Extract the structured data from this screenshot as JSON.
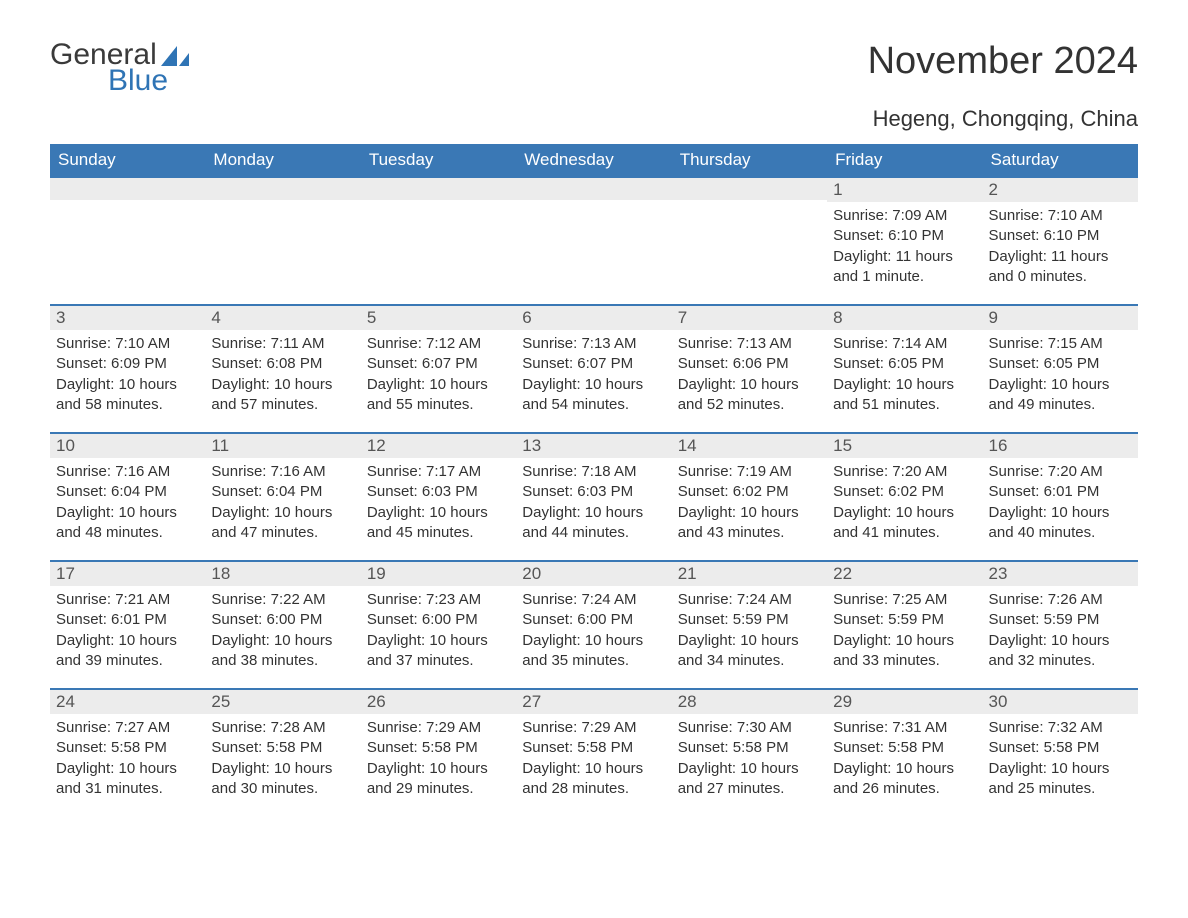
{
  "brand": {
    "part1": "General",
    "part2": "Blue",
    "color_text": "#3a3a3a",
    "color_accent": "#2f74b5"
  },
  "title": "November 2024",
  "location": "Hegeng, Chongqing, China",
  "colors": {
    "header_bg": "#3a78b5",
    "header_text": "#ffffff",
    "row_stripe": "#ececec",
    "row_border": "#3a78b5",
    "body_text": "#333333",
    "page_bg": "#ffffff"
  },
  "typography": {
    "title_fontsize": 38,
    "location_fontsize": 22,
    "header_fontsize": 17,
    "body_fontsize": 15
  },
  "weekdays": [
    "Sunday",
    "Monday",
    "Tuesday",
    "Wednesday",
    "Thursday",
    "Friday",
    "Saturday"
  ],
  "layout": {
    "columns": 7,
    "rows": 5,
    "first_day_column_index": 5
  },
  "days": [
    {
      "n": 1,
      "sunrise": "7:09 AM",
      "sunset": "6:10 PM",
      "daylight": "11 hours and 1 minute."
    },
    {
      "n": 2,
      "sunrise": "7:10 AM",
      "sunset": "6:10 PM",
      "daylight": "11 hours and 0 minutes."
    },
    {
      "n": 3,
      "sunrise": "7:10 AM",
      "sunset": "6:09 PM",
      "daylight": "10 hours and 58 minutes."
    },
    {
      "n": 4,
      "sunrise": "7:11 AM",
      "sunset": "6:08 PM",
      "daylight": "10 hours and 57 minutes."
    },
    {
      "n": 5,
      "sunrise": "7:12 AM",
      "sunset": "6:07 PM",
      "daylight": "10 hours and 55 minutes."
    },
    {
      "n": 6,
      "sunrise": "7:13 AM",
      "sunset": "6:07 PM",
      "daylight": "10 hours and 54 minutes."
    },
    {
      "n": 7,
      "sunrise": "7:13 AM",
      "sunset": "6:06 PM",
      "daylight": "10 hours and 52 minutes."
    },
    {
      "n": 8,
      "sunrise": "7:14 AM",
      "sunset": "6:05 PM",
      "daylight": "10 hours and 51 minutes."
    },
    {
      "n": 9,
      "sunrise": "7:15 AM",
      "sunset": "6:05 PM",
      "daylight": "10 hours and 49 minutes."
    },
    {
      "n": 10,
      "sunrise": "7:16 AM",
      "sunset": "6:04 PM",
      "daylight": "10 hours and 48 minutes."
    },
    {
      "n": 11,
      "sunrise": "7:16 AM",
      "sunset": "6:04 PM",
      "daylight": "10 hours and 47 minutes."
    },
    {
      "n": 12,
      "sunrise": "7:17 AM",
      "sunset": "6:03 PM",
      "daylight": "10 hours and 45 minutes."
    },
    {
      "n": 13,
      "sunrise": "7:18 AM",
      "sunset": "6:03 PM",
      "daylight": "10 hours and 44 minutes."
    },
    {
      "n": 14,
      "sunrise": "7:19 AM",
      "sunset": "6:02 PM",
      "daylight": "10 hours and 43 minutes."
    },
    {
      "n": 15,
      "sunrise": "7:20 AM",
      "sunset": "6:02 PM",
      "daylight": "10 hours and 41 minutes."
    },
    {
      "n": 16,
      "sunrise": "7:20 AM",
      "sunset": "6:01 PM",
      "daylight": "10 hours and 40 minutes."
    },
    {
      "n": 17,
      "sunrise": "7:21 AM",
      "sunset": "6:01 PM",
      "daylight": "10 hours and 39 minutes."
    },
    {
      "n": 18,
      "sunrise": "7:22 AM",
      "sunset": "6:00 PM",
      "daylight": "10 hours and 38 minutes."
    },
    {
      "n": 19,
      "sunrise": "7:23 AM",
      "sunset": "6:00 PM",
      "daylight": "10 hours and 37 minutes."
    },
    {
      "n": 20,
      "sunrise": "7:24 AM",
      "sunset": "6:00 PM",
      "daylight": "10 hours and 35 minutes."
    },
    {
      "n": 21,
      "sunrise": "7:24 AM",
      "sunset": "5:59 PM",
      "daylight": "10 hours and 34 minutes."
    },
    {
      "n": 22,
      "sunrise": "7:25 AM",
      "sunset": "5:59 PM",
      "daylight": "10 hours and 33 minutes."
    },
    {
      "n": 23,
      "sunrise": "7:26 AM",
      "sunset": "5:59 PM",
      "daylight": "10 hours and 32 minutes."
    },
    {
      "n": 24,
      "sunrise": "7:27 AM",
      "sunset": "5:58 PM",
      "daylight": "10 hours and 31 minutes."
    },
    {
      "n": 25,
      "sunrise": "7:28 AM",
      "sunset": "5:58 PM",
      "daylight": "10 hours and 30 minutes."
    },
    {
      "n": 26,
      "sunrise": "7:29 AM",
      "sunset": "5:58 PM",
      "daylight": "10 hours and 29 minutes."
    },
    {
      "n": 27,
      "sunrise": "7:29 AM",
      "sunset": "5:58 PM",
      "daylight": "10 hours and 28 minutes."
    },
    {
      "n": 28,
      "sunrise": "7:30 AM",
      "sunset": "5:58 PM",
      "daylight": "10 hours and 27 minutes."
    },
    {
      "n": 29,
      "sunrise": "7:31 AM",
      "sunset": "5:58 PM",
      "daylight": "10 hours and 26 minutes."
    },
    {
      "n": 30,
      "sunrise": "7:32 AM",
      "sunset": "5:58 PM",
      "daylight": "10 hours and 25 minutes."
    }
  ],
  "labels": {
    "sunrise": "Sunrise: ",
    "sunset": "Sunset: ",
    "daylight": "Daylight: "
  }
}
